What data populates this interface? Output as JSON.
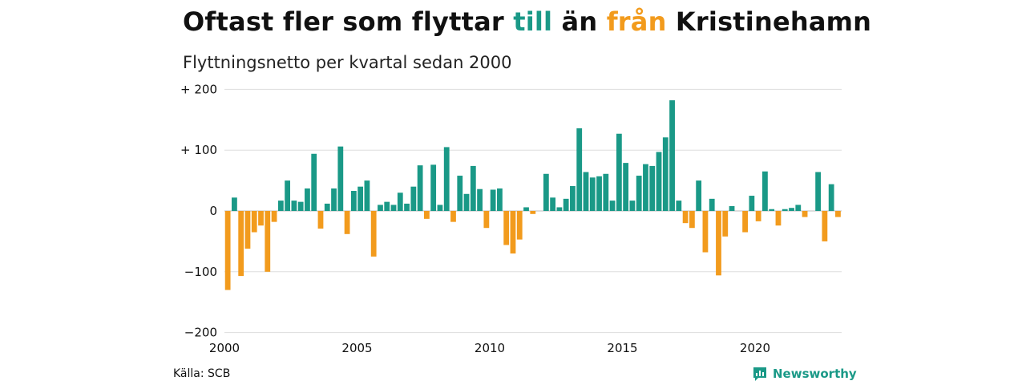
{
  "title": {
    "part1": "Oftast fler som flyttar ",
    "highlight1": "till",
    "part2": " än ",
    "highlight2": "från",
    "part3": " Kristinehamn"
  },
  "subtitle": "Flyttningsnetto per kvartal sedan 2000",
  "source": "Källa: SCB",
  "brand": "Newsworthy",
  "colors": {
    "positive": "#1a9987",
    "negative": "#f29b1d",
    "grid": "#dddddd",
    "zero": "#bbbbbb"
  },
  "chart_data": {
    "type": "bar",
    "start_year": 2000,
    "x_ticks": [
      2000,
      2005,
      2010,
      2015,
      2020
    ],
    "y_ticks": [
      {
        "value": 200,
        "label": "+ 200"
      },
      {
        "value": 100,
        "label": "+ 100"
      },
      {
        "value": 0,
        "label": "0"
      },
      {
        "value": -100,
        "label": "−100"
      },
      {
        "value": -200,
        "label": "−200"
      }
    ],
    "ylim": [
      -200,
      200
    ],
    "values": [
      -130,
      22,
      -107,
      -62,
      -35,
      -24,
      -100,
      -18,
      17,
      50,
      17,
      15,
      37,
      94,
      -29,
      12,
      37,
      106,
      -38,
      33,
      40,
      50,
      -75,
      10,
      15,
      10,
      30,
      12,
      40,
      75,
      -13,
      76,
      10,
      105,
      -18,
      58,
      28,
      74,
      36,
      -28,
      35,
      37,
      -56,
      -70,
      -47,
      6,
      -5,
      0,
      61,
      22,
      6,
      20,
      41,
      136,
      64,
      55,
      57,
      61,
      17,
      127,
      79,
      17,
      58,
      77,
      74,
      97,
      121,
      182,
      17,
      -20,
      -28,
      50,
      -68,
      20,
      -106,
      -42,
      8,
      0,
      -35,
      25,
      -17,
      65,
      3,
      -24,
      3,
      5,
      10,
      -10,
      0,
      64,
      -50,
      44,
      -10
    ]
  }
}
